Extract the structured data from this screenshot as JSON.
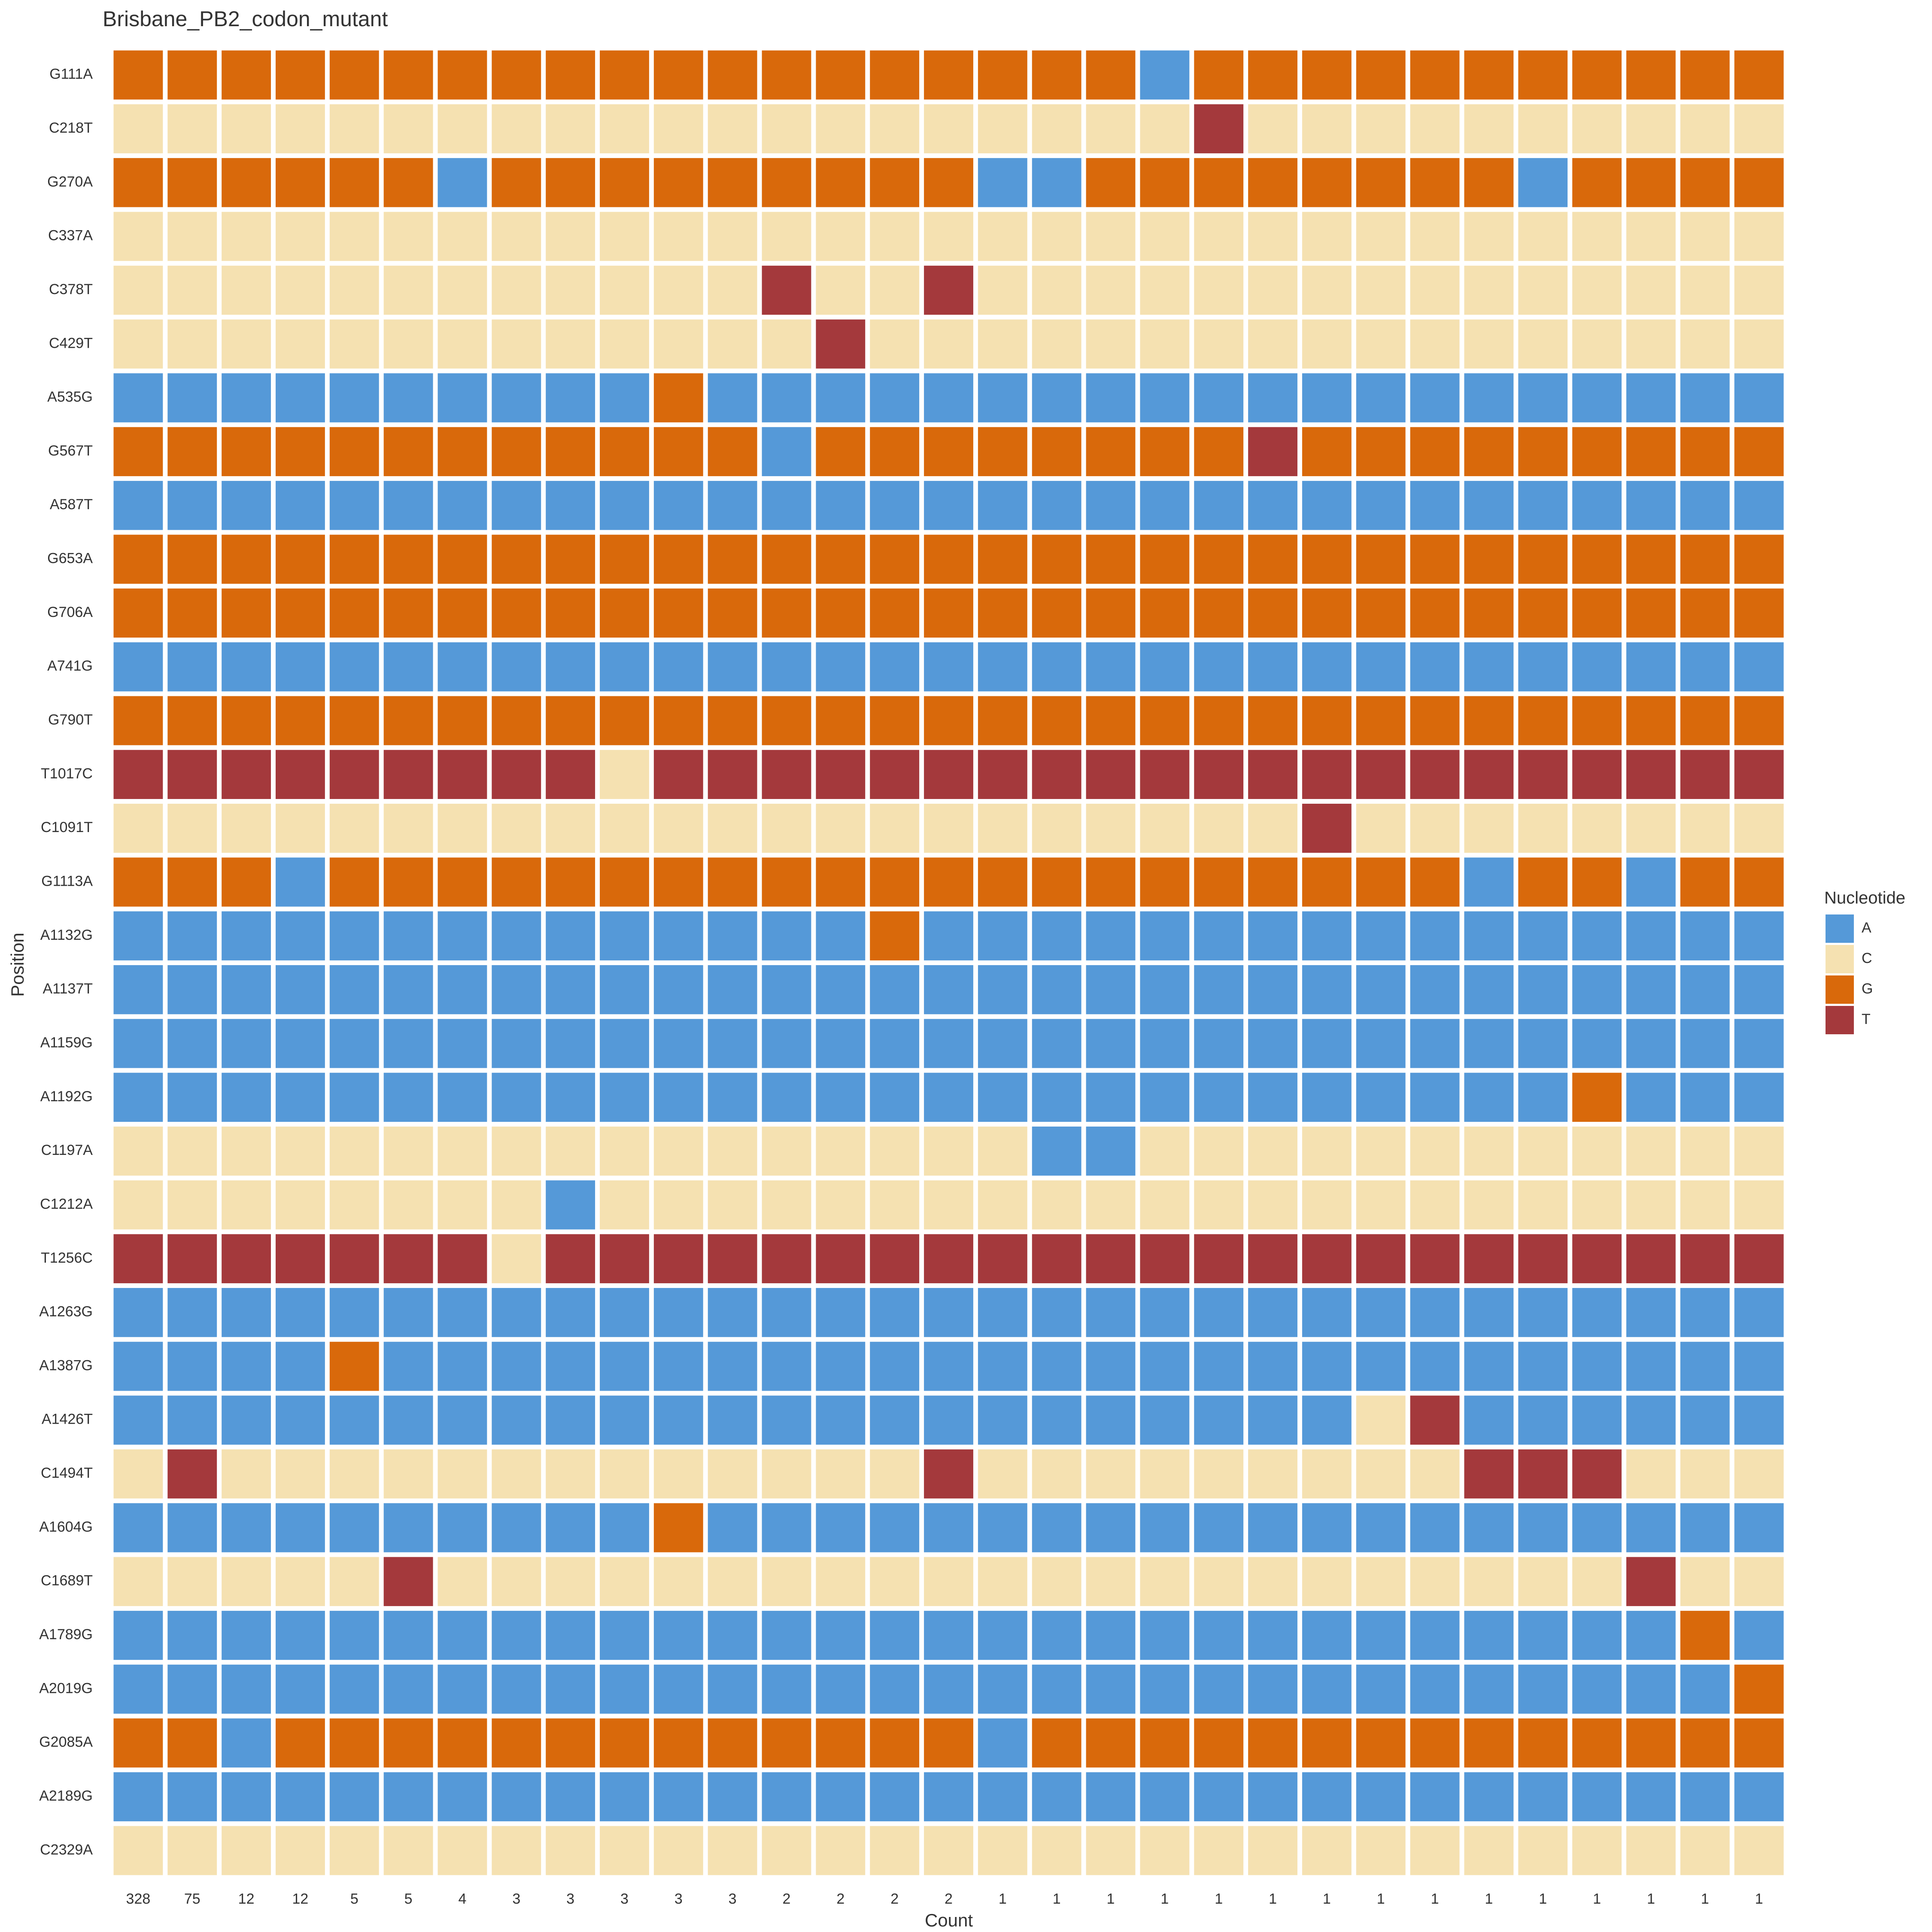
{
  "chart_data": {
    "type": "tile",
    "title": "Brisbane_PB2_codon_mutant",
    "x_label": "Count",
    "y_label": "Position",
    "categories": [
      "328",
      "75",
      "12",
      "12",
      "5",
      "5",
      "4",
      "3",
      "3",
      "3",
      "3",
      "3",
      "2",
      "2",
      "2",
      "2",
      "1",
      "1",
      "1",
      "1",
      "1",
      "1",
      "1",
      "1",
      "1",
      "1",
      "1",
      "1",
      "1",
      "1",
      "1"
    ],
    "rows": [
      "G111A",
      "C218T",
      "G270A",
      "C337A",
      "C378T",
      "C429T",
      "A535G",
      "G567T",
      "A587T",
      "G653A",
      "G706A",
      "A741G",
      "G790T",
      "T1017C",
      "C1091T",
      "G1113A",
      "A1132G",
      "A1137T",
      "A1159G",
      "A1192G",
      "C1197A",
      "C1212A",
      "T1256C",
      "A1263G",
      "A1387G",
      "A1426T",
      "C1494T",
      "A1604G",
      "C1689T",
      "A1789G",
      "A2019G",
      "G2085A",
      "A2189G",
      "C2329A"
    ],
    "legend": {
      "title": "Nucleotide",
      "items": [
        {
          "name": "A",
          "color": "#5599d8"
        },
        {
          "name": "C",
          "color": "#f5e1b1"
        },
        {
          "name": "G",
          "color": "#d9690b"
        },
        {
          "name": "T",
          "color": "#a4393c"
        }
      ]
    },
    "values": [
      [
        "G",
        "G",
        "G",
        "G",
        "G",
        "G",
        "G",
        "G",
        "G",
        "G",
        "G",
        "G",
        "G",
        "G",
        "G",
        "G",
        "G",
        "G",
        "G",
        "A",
        "G",
        "G",
        "G",
        "G",
        "G",
        "G",
        "G",
        "G",
        "G",
        "G",
        "G"
      ],
      [
        "C",
        "C",
        "C",
        "C",
        "C",
        "C",
        "C",
        "C",
        "C",
        "C",
        "C",
        "C",
        "C",
        "C",
        "C",
        "C",
        "C",
        "C",
        "C",
        "C",
        "T",
        "C",
        "C",
        "C",
        "C",
        "C",
        "C",
        "C",
        "C",
        "C",
        "C"
      ],
      [
        "G",
        "G",
        "G",
        "G",
        "G",
        "G",
        "A",
        "G",
        "G",
        "G",
        "G",
        "G",
        "G",
        "G",
        "G",
        "G",
        "A",
        "A",
        "G",
        "G",
        "G",
        "G",
        "G",
        "G",
        "G",
        "G",
        "A",
        "G",
        "G",
        "G",
        "G"
      ],
      [
        "C",
        "C",
        "C",
        "C",
        "C",
        "C",
        "C",
        "C",
        "C",
        "C",
        "C",
        "C",
        "C",
        "C",
        "C",
        "C",
        "C",
        "C",
        "C",
        "C",
        "C",
        "C",
        "C",
        "C",
        "C",
        "C",
        "C",
        "C",
        "C",
        "C",
        "C"
      ],
      [
        "C",
        "C",
        "C",
        "C",
        "C",
        "C",
        "C",
        "C",
        "C",
        "C",
        "C",
        "C",
        "T",
        "C",
        "C",
        "T",
        "C",
        "C",
        "C",
        "C",
        "C",
        "C",
        "C",
        "C",
        "C",
        "C",
        "C",
        "C",
        "C",
        "C",
        "C"
      ],
      [
        "C",
        "C",
        "C",
        "C",
        "C",
        "C",
        "C",
        "C",
        "C",
        "C",
        "C",
        "C",
        "C",
        "T",
        "C",
        "C",
        "C",
        "C",
        "C",
        "C",
        "C",
        "C",
        "C",
        "C",
        "C",
        "C",
        "C",
        "C",
        "C",
        "C",
        "C"
      ],
      [
        "A",
        "A",
        "A",
        "A",
        "A",
        "A",
        "A",
        "A",
        "A",
        "A",
        "G",
        "A",
        "A",
        "A",
        "A",
        "A",
        "A",
        "A",
        "A",
        "A",
        "A",
        "A",
        "A",
        "A",
        "A",
        "A",
        "A",
        "A",
        "A",
        "A",
        "A"
      ],
      [
        "G",
        "G",
        "G",
        "G",
        "G",
        "G",
        "G",
        "G",
        "G",
        "G",
        "G",
        "G",
        "A",
        "G",
        "G",
        "G",
        "G",
        "G",
        "G",
        "G",
        "G",
        "T",
        "G",
        "G",
        "G",
        "G",
        "G",
        "G",
        "G",
        "G",
        "G"
      ],
      [
        "A",
        "A",
        "A",
        "A",
        "A",
        "A",
        "A",
        "A",
        "A",
        "A",
        "A",
        "A",
        "A",
        "A",
        "A",
        "A",
        "A",
        "A",
        "A",
        "A",
        "A",
        "A",
        "A",
        "A",
        "A",
        "A",
        "A",
        "A",
        "A",
        "A",
        "A"
      ],
      [
        "G",
        "G",
        "G",
        "G",
        "G",
        "G",
        "G",
        "G",
        "G",
        "G",
        "G",
        "G",
        "G",
        "G",
        "G",
        "G",
        "G",
        "G",
        "G",
        "G",
        "G",
        "G",
        "G",
        "G",
        "G",
        "G",
        "G",
        "G",
        "G",
        "G",
        "G"
      ],
      [
        "G",
        "G",
        "G",
        "G",
        "G",
        "G",
        "G",
        "G",
        "G",
        "G",
        "G",
        "G",
        "G",
        "G",
        "G",
        "G",
        "G",
        "G",
        "G",
        "G",
        "G",
        "G",
        "G",
        "G",
        "G",
        "G",
        "G",
        "G",
        "G",
        "G",
        "G"
      ],
      [
        "A",
        "A",
        "A",
        "A",
        "A",
        "A",
        "A",
        "A",
        "A",
        "A",
        "A",
        "A",
        "A",
        "A",
        "A",
        "A",
        "A",
        "A",
        "A",
        "A",
        "A",
        "A",
        "A",
        "A",
        "A",
        "A",
        "A",
        "A",
        "A",
        "A",
        "A"
      ],
      [
        "G",
        "G",
        "G",
        "G",
        "G",
        "G",
        "G",
        "G",
        "G",
        "G",
        "G",
        "G",
        "G",
        "G",
        "G",
        "G",
        "G",
        "G",
        "G",
        "G",
        "G",
        "G",
        "G",
        "G",
        "G",
        "G",
        "G",
        "G",
        "G",
        "G",
        "G"
      ],
      [
        "T",
        "T",
        "T",
        "T",
        "T",
        "T",
        "T",
        "T",
        "T",
        "C",
        "T",
        "T",
        "T",
        "T",
        "T",
        "T",
        "T",
        "T",
        "T",
        "T",
        "T",
        "T",
        "T",
        "T",
        "T",
        "T",
        "T",
        "T",
        "T",
        "T",
        "T"
      ],
      [
        "C",
        "C",
        "C",
        "C",
        "C",
        "C",
        "C",
        "C",
        "C",
        "C",
        "C",
        "C",
        "C",
        "C",
        "C",
        "C",
        "C",
        "C",
        "C",
        "C",
        "C",
        "C",
        "T",
        "C",
        "C",
        "C",
        "C",
        "C",
        "C",
        "C",
        "C"
      ],
      [
        "G",
        "G",
        "G",
        "A",
        "G",
        "G",
        "G",
        "G",
        "G",
        "G",
        "G",
        "G",
        "G",
        "G",
        "G",
        "G",
        "G",
        "G",
        "G",
        "G",
        "G",
        "G",
        "G",
        "G",
        "G",
        "A",
        "G",
        "G",
        "A",
        "G",
        "G"
      ],
      [
        "A",
        "A",
        "A",
        "A",
        "A",
        "A",
        "A",
        "A",
        "A",
        "A",
        "A",
        "A",
        "A",
        "A",
        "G",
        "A",
        "A",
        "A",
        "A",
        "A",
        "A",
        "A",
        "A",
        "A",
        "A",
        "A",
        "A",
        "A",
        "A",
        "A",
        "A"
      ],
      [
        "A",
        "A",
        "A",
        "A",
        "A",
        "A",
        "A",
        "A",
        "A",
        "A",
        "A",
        "A",
        "A",
        "A",
        "A",
        "A",
        "A",
        "A",
        "A",
        "A",
        "A",
        "A",
        "A",
        "A",
        "A",
        "A",
        "A",
        "A",
        "A",
        "A",
        "A"
      ],
      [
        "A",
        "A",
        "A",
        "A",
        "A",
        "A",
        "A",
        "A",
        "A",
        "A",
        "A",
        "A",
        "A",
        "A",
        "A",
        "A",
        "A",
        "A",
        "A",
        "A",
        "A",
        "A",
        "A",
        "A",
        "A",
        "A",
        "A",
        "A",
        "A",
        "A",
        "A"
      ],
      [
        "A",
        "A",
        "A",
        "A",
        "A",
        "A",
        "A",
        "A",
        "A",
        "A",
        "A",
        "A",
        "A",
        "A",
        "A",
        "A",
        "A",
        "A",
        "A",
        "A",
        "A",
        "A",
        "A",
        "A",
        "A",
        "A",
        "A",
        "G",
        "A",
        "A",
        "A"
      ],
      [
        "C",
        "C",
        "C",
        "C",
        "C",
        "C",
        "C",
        "C",
        "C",
        "C",
        "C",
        "C",
        "C",
        "C",
        "C",
        "C",
        "C",
        "A",
        "A",
        "C",
        "C",
        "C",
        "C",
        "C",
        "C",
        "C",
        "C",
        "C",
        "C",
        "C",
        "C"
      ],
      [
        "C",
        "C",
        "C",
        "C",
        "C",
        "C",
        "C",
        "C",
        "A",
        "C",
        "C",
        "C",
        "C",
        "C",
        "C",
        "C",
        "C",
        "C",
        "C",
        "C",
        "C",
        "C",
        "C",
        "C",
        "C",
        "C",
        "C",
        "C",
        "C",
        "C",
        "C"
      ],
      [
        "T",
        "T",
        "T",
        "T",
        "T",
        "T",
        "T",
        "C",
        "T",
        "T",
        "T",
        "T",
        "T",
        "T",
        "T",
        "T",
        "T",
        "T",
        "T",
        "T",
        "T",
        "T",
        "T",
        "T",
        "T",
        "T",
        "T",
        "T",
        "T",
        "T",
        "T"
      ],
      [
        "A",
        "A",
        "A",
        "A",
        "A",
        "A",
        "A",
        "A",
        "A",
        "A",
        "A",
        "A",
        "A",
        "A",
        "A",
        "A",
        "A",
        "A",
        "A",
        "A",
        "A",
        "A",
        "A",
        "A",
        "A",
        "A",
        "A",
        "A",
        "A",
        "A",
        "A"
      ],
      [
        "A",
        "A",
        "A",
        "A",
        "G",
        "A",
        "A",
        "A",
        "A",
        "A",
        "A",
        "A",
        "A",
        "A",
        "A",
        "A",
        "A",
        "A",
        "A",
        "A",
        "A",
        "A",
        "A",
        "A",
        "A",
        "A",
        "A",
        "A",
        "A",
        "A",
        "A"
      ],
      [
        "A",
        "A",
        "A",
        "A",
        "A",
        "A",
        "A",
        "A",
        "A",
        "A",
        "A",
        "A",
        "A",
        "A",
        "A",
        "A",
        "A",
        "A",
        "A",
        "A",
        "A",
        "A",
        "A",
        "C",
        "T",
        "A",
        "A",
        "A",
        "A",
        "A",
        "A"
      ],
      [
        "C",
        "T",
        "C",
        "C",
        "C",
        "C",
        "C",
        "C",
        "C",
        "C",
        "C",
        "C",
        "C",
        "C",
        "C",
        "T",
        "C",
        "C",
        "C",
        "C",
        "C",
        "C",
        "C",
        "C",
        "C",
        "T",
        "T",
        "T",
        "C",
        "C",
        "C"
      ],
      [
        "A",
        "A",
        "A",
        "A",
        "A",
        "A",
        "A",
        "A",
        "A",
        "A",
        "G",
        "A",
        "A",
        "A",
        "A",
        "A",
        "A",
        "A",
        "A",
        "A",
        "A",
        "A",
        "A",
        "A",
        "A",
        "A",
        "A",
        "A",
        "A",
        "A",
        "A"
      ],
      [
        "C",
        "C",
        "C",
        "C",
        "C",
        "T",
        "C",
        "C",
        "C",
        "C",
        "C",
        "C",
        "C",
        "C",
        "C",
        "C",
        "C",
        "C",
        "C",
        "C",
        "C",
        "C",
        "C",
        "C",
        "C",
        "C",
        "C",
        "C",
        "T",
        "C",
        "C"
      ],
      [
        "A",
        "A",
        "A",
        "A",
        "A",
        "A",
        "A",
        "A",
        "A",
        "A",
        "A",
        "A",
        "A",
        "A",
        "A",
        "A",
        "A",
        "A",
        "A",
        "A",
        "A",
        "A",
        "A",
        "A",
        "A",
        "A",
        "A",
        "A",
        "A",
        "G",
        "A"
      ],
      [
        "A",
        "A",
        "A",
        "A",
        "A",
        "A",
        "A",
        "A",
        "A",
        "A",
        "A",
        "A",
        "A",
        "A",
        "A",
        "A",
        "A",
        "A",
        "A",
        "A",
        "A",
        "A",
        "A",
        "A",
        "A",
        "A",
        "A",
        "A",
        "A",
        "A",
        "G"
      ],
      [
        "G",
        "G",
        "A",
        "G",
        "G",
        "G",
        "G",
        "G",
        "G",
        "G",
        "G",
        "G",
        "G",
        "G",
        "G",
        "G",
        "A",
        "G",
        "G",
        "G",
        "G",
        "G",
        "G",
        "G",
        "G",
        "G",
        "G",
        "G",
        "G",
        "G",
        "G"
      ],
      [
        "A",
        "A",
        "A",
        "A",
        "A",
        "A",
        "A",
        "A",
        "A",
        "A",
        "A",
        "A",
        "A",
        "A",
        "A",
        "A",
        "A",
        "A",
        "A",
        "A",
        "A",
        "A",
        "A",
        "A",
        "A",
        "A",
        "A",
        "A",
        "A",
        "A",
        "A"
      ],
      [
        "C",
        "C",
        "C",
        "C",
        "C",
        "C",
        "C",
        "C",
        "C",
        "C",
        "C",
        "C",
        "C",
        "C",
        "C",
        "C",
        "C",
        "C",
        "C",
        "C",
        "C",
        "C",
        "C",
        "C",
        "C",
        "C",
        "C",
        "C",
        "C",
        "C",
        "C"
      ]
    ]
  }
}
